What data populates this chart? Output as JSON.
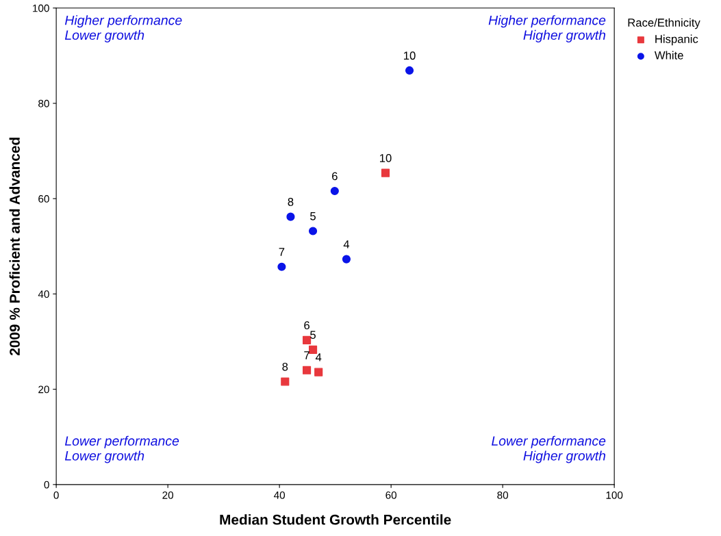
{
  "chart_data": {
    "type": "scatter",
    "xlabel": "Median Student Growth Percentile",
    "ylabel": "2009 % Proficient and Advanced",
    "legend_title": "Race/Ethnicity",
    "xlim": [
      0,
      100
    ],
    "ylim": [
      0,
      100
    ],
    "xticks": [
      0,
      20,
      40,
      60,
      80,
      100
    ],
    "yticks": [
      0,
      20,
      40,
      60,
      80,
      100
    ],
    "grid": false,
    "legend": "top right",
    "series": [
      {
        "name": "Hispanic",
        "color": "#e8383d",
        "marker": "square",
        "x": [
          59.0,
          44.9,
          46.0,
          44.9,
          47.0,
          41.0
        ],
        "values": [
          65.4,
          30.3,
          28.3,
          24.0,
          23.6,
          21.6
        ]
      },
      {
        "name": "White",
        "color": "#0a14e8",
        "marker": "circle",
        "x": [
          63.3,
          49.9,
          42.0,
          46.0,
          52.0,
          40.4
        ],
        "values": [
          86.9,
          61.6,
          56.2,
          53.2,
          47.3,
          45.7
        ]
      }
    ],
    "annotations": [
      "Higher performance\nLower growth",
      "Higher performance\nHigher growth",
      "Lower performance\nLower growth",
      "Lower performance\nHigher growth",
      {
        "text": "10",
        "x": 59.0,
        "y": 65.4
      },
      {
        "text": "6",
        "x": 44.9,
        "y": 30.3
      },
      {
        "text": "5",
        "x": 46.0,
        "y": 28.3
      },
      {
        "text": "7",
        "x": 44.9,
        "y": 24.0
      },
      {
        "text": "4",
        "x": 47.0,
        "y": 23.6
      },
      {
        "text": "8",
        "x": 41.0,
        "y": 21.6
      },
      {
        "text": "10",
        "x": 63.3,
        "y": 86.9
      },
      {
        "text": "6",
        "x": 49.9,
        "y": 61.6
      },
      {
        "text": "8",
        "x": 42.0,
        "y": 56.2
      },
      {
        "text": "5",
        "x": 46.0,
        "y": 53.2
      },
      {
        "text": "4",
        "x": 52.0,
        "y": 47.3
      },
      {
        "text": "7",
        "x": 40.4,
        "y": 45.7
      }
    ]
  }
}
